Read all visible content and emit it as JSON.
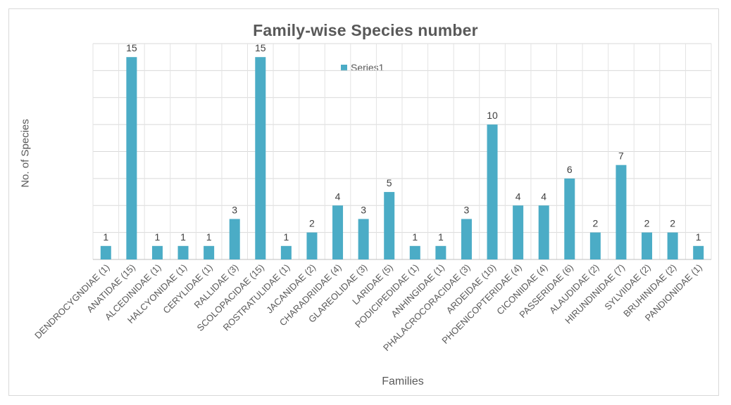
{
  "chart_data": {
    "type": "bar",
    "title": "Family-wise Species number",
    "xlabel": "Families",
    "ylabel": "No. of Species",
    "legend": {
      "position": "top-center",
      "entries": [
        "Series1"
      ]
    },
    "grid": true,
    "ylim": [
      0,
      16
    ],
    "categories": [
      "DENDROCYGNDIAE (1)",
      "ANATIDAE (15)",
      "ALCEDINIDAE (1)",
      "HALCYONIDAE (1)",
      "CERYLIDAE (1)",
      "RALLIDAE (3)",
      "SCOLOPACIDAE (15)",
      "ROSTRATULIDAE (1)",
      "JACANIDAE (2)",
      "CHARADRIIDAE (4)",
      "GLAREOLIDAE (3)",
      "LARIDAE (5)",
      "PODICIPEDIDAE (1)",
      "ANHINGIDAE (1)",
      "PHALACROCORACIDAE (3)",
      "ARDEIDAE (10)",
      "PHOENICOPTERIDAE (4)",
      "CICONIIDAE (4)",
      "PASSERIDAE (6)",
      "ALAUDIDAE (2)",
      "HIRUNDINIDAE (7)",
      "SYLVIIDAE (2)",
      "BRUHINIDAE (2)",
      "PANDIONIDAE (1)"
    ],
    "series": [
      {
        "name": "Series1",
        "color": "#4bacc6",
        "values": [
          1,
          15,
          1,
          1,
          1,
          3,
          15,
          1,
          2,
          4,
          3,
          5,
          1,
          1,
          3,
          10,
          4,
          4,
          6,
          2,
          7,
          2,
          2,
          1
        ]
      }
    ]
  }
}
